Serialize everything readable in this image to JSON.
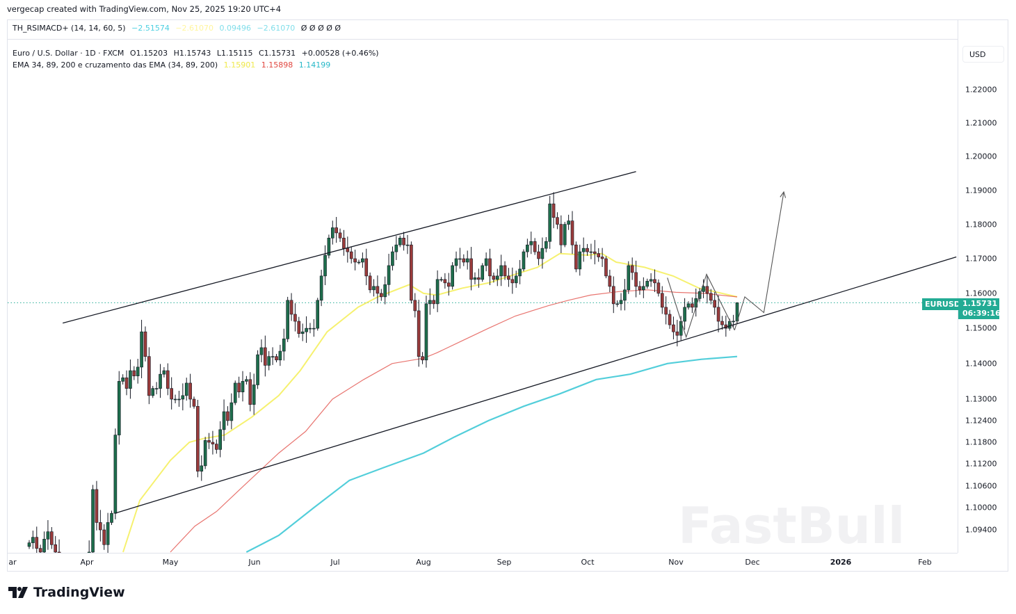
{
  "header": {
    "credit": "vergecap created with TradingView.com, Nov 25, 2025 19:20 UTC+4"
  },
  "indicator": {
    "name": "TH_RSIMACD+ (14, 14, 60, 5)",
    "values": [
      {
        "text": "−2.51574",
        "color": "#4dd0e1"
      },
      {
        "text": "−2.61070",
        "color": "#fff59d"
      },
      {
        "text": "0.09496",
        "color": "#80deea"
      },
      {
        "text": "−2.61070",
        "color": "#80deea"
      },
      {
        "text": "Ø Ø Ø Ø Ø",
        "color": "#131722"
      }
    ]
  },
  "legend": {
    "symbol": "Euro / U.S. Dollar · 1D · FXCM",
    "open": "O1.15203",
    "high": "H1.15743",
    "low": "L1.15115",
    "close": "C1.15731",
    "change": "+0.00528 (+0.46%)",
    "ema_name": "EMA 34, 89, 200 e cruzamento das EMA (34, 89, 200)",
    "ema_values": [
      {
        "text": "1.15901",
        "color": "#f5ef5f"
      },
      {
        "text": "1.15898",
        "color": "#e0463f"
      },
      {
        "text": "1.14199",
        "color": "#26b8c8"
      }
    ]
  },
  "price_axis": {
    "currency": "USD"
  },
  "price_label": {
    "symbol": "EURUSD",
    "price": "1.15731",
    "countdown": "06:39:16",
    "color": "#22ab94"
  },
  "watermark": "FastBull",
  "footer": {
    "brand": "TradingView"
  },
  "chart_data": {
    "type": "candlestick",
    "title": "",
    "y_scale": "log",
    "grid": false,
    "ylim": [
      1.086,
      1.232
    ],
    "y_ticks": [
      "1.22000",
      "1.21000",
      "1.20000",
      "1.19000",
      "1.18000",
      "1.17000",
      "1.16000",
      "1.15000",
      "1.14000",
      "1.13000",
      "1.12400",
      "1.11800",
      "1.11200",
      "1.10600",
      "1.10000",
      "1.09400"
    ],
    "x_ticks": [
      {
        "label": "ar",
        "date": "2025-03-01"
      },
      {
        "label": "Apr",
        "date": "2025-04-01"
      },
      {
        "label": "May",
        "date": "2025-05-01"
      },
      {
        "label": "Jun",
        "date": "2025-06-01"
      },
      {
        "label": "Jul",
        "date": "2025-07-01"
      },
      {
        "label": "Aug",
        "date": "2025-08-01"
      },
      {
        "label": "Sep",
        "date": "2025-09-01"
      },
      {
        "label": "Oct",
        "date": "2025-10-01"
      },
      {
        "label": "Nov",
        "date": "2025-11-01"
      },
      {
        "label": "Dec",
        "date": "2025-12-01"
      },
      {
        "label": "2026",
        "date": "2026-01-01",
        "bold": true
      },
      {
        "label": "Feb",
        "date": "2026-02-01"
      }
    ],
    "last_bar_date": "2025-11-25",
    "last_bar": {
      "open": 1.15203,
      "high": 1.15743,
      "low": 1.15115,
      "close": 1.15731
    },
    "closes": [
      1.0905,
      1.092,
      1.089,
      1.088,
      1.0915,
      1.0935,
      1.09,
      1.088,
      1.082,
      1.08,
      1.079,
      1.081,
      1.078,
      1.08,
      1.083,
      1.085,
      1.088,
      1.105,
      1.096,
      1.094,
      1.09,
      1.096,
      1.0985,
      1.12,
      1.135,
      1.136,
      1.133,
      1.138,
      1.1365,
      1.139,
      1.149,
      1.142,
      1.131,
      1.133,
      1.133,
      1.137,
      1.138,
      1.133,
      1.13,
      1.13,
      1.13,
      1.131,
      1.1345,
      1.13,
      1.128,
      1.11,
      1.1115,
      1.1185,
      1.118,
      1.1175,
      1.116,
      1.1215,
      1.1265,
      1.124,
      1.129,
      1.1345,
      1.132,
      1.135,
      1.1355,
      1.1285,
      1.134,
      1.1425,
      1.1445,
      1.1395,
      1.142,
      1.142,
      1.141,
      1.1435,
      1.147,
      1.158,
      1.154,
      1.152,
      1.1485,
      1.149,
      1.15,
      1.15,
      1.15,
      1.158,
      1.165,
      1.171,
      1.176,
      1.179,
      1.1775,
      1.176,
      1.173,
      1.172,
      1.17,
      1.169,
      1.169,
      1.17,
      1.165,
      1.161,
      1.162,
      1.16,
      1.159,
      1.1625,
      1.168,
      1.172,
      1.174,
      1.176,
      1.174,
      1.174,
      1.158,
      1.155,
      1.142,
      1.141,
      1.157,
      1.158,
      1.157,
      1.164,
      1.164,
      1.163,
      1.162,
      1.168,
      1.17,
      1.17,
      1.169,
      1.17,
      1.164,
      1.1645,
      1.164,
      1.168,
      1.17,
      1.165,
      1.164,
      1.165,
      1.168,
      1.165,
      1.164,
      1.163,
      1.165,
      1.167,
      1.172,
      1.174,
      1.175,
      1.172,
      1.17,
      1.173,
      1.175,
      1.186,
      1.182,
      1.18,
      1.174,
      1.18,
      1.181,
      1.174,
      1.167,
      1.172,
      1.173,
      1.172,
      1.172,
      1.1715,
      1.1705,
      1.17,
      1.165,
      1.162,
      1.157,
      1.157,
      1.158,
      1.161,
      1.168,
      1.166,
      1.162,
      1.161,
      1.162,
      1.1635,
      1.164,
      1.163,
      1.16,
      1.156,
      1.154,
      1.151,
      1.149,
      1.148,
      1.152,
      1.156,
      1.157,
      1.156,
      1.1585,
      1.1605,
      1.162,
      1.16,
      1.158,
      1.156,
      1.152,
      1.151,
      1.15,
      1.152,
      1.15203
    ],
    "series": [
      {
        "name": "EMA 34",
        "color": "#f5ef5f",
        "points": [
          [
            "2025-04-14",
            1.088
          ],
          [
            "2025-04-20",
            1.102
          ],
          [
            "2025-05-01",
            1.113
          ],
          [
            "2025-05-08",
            1.118
          ],
          [
            "2025-05-13",
            1.119
          ],
          [
            "2025-05-21",
            1.12
          ],
          [
            "2025-05-31",
            1.125
          ],
          [
            "2025-06-10",
            1.131
          ],
          [
            "2025-06-18",
            1.138
          ],
          [
            "2025-06-28",
            1.149
          ],
          [
            "2025-07-09",
            1.156
          ],
          [
            "2025-07-16",
            1.159
          ],
          [
            "2025-07-27",
            1.1625
          ],
          [
            "2025-08-01",
            1.16
          ],
          [
            "2025-08-06",
            1.1595
          ],
          [
            "2025-08-16",
            1.1615
          ],
          [
            "2025-08-26",
            1.163
          ],
          [
            "2025-09-05",
            1.1655
          ],
          [
            "2025-09-13",
            1.1675
          ],
          [
            "2025-09-21",
            1.1715
          ],
          [
            "2025-10-01",
            1.171
          ],
          [
            "2025-10-06",
            1.1715
          ],
          [
            "2025-10-11",
            1.169
          ],
          [
            "2025-10-21",
            1.1675
          ],
          [
            "2025-10-31",
            1.165
          ],
          [
            "2025-11-10",
            1.1615
          ],
          [
            "2025-11-25",
            1.15901
          ]
        ]
      },
      {
        "name": "EMA 89",
        "color": "#e0463f",
        "points": [
          [
            "2025-05-01",
            1.088
          ],
          [
            "2025-05-10",
            1.095
          ],
          [
            "2025-05-18",
            1.099
          ],
          [
            "2025-05-28",
            1.106
          ],
          [
            "2025-06-10",
            1.115
          ],
          [
            "2025-06-20",
            1.121
          ],
          [
            "2025-06-30",
            1.13
          ],
          [
            "2025-07-11",
            1.1355
          ],
          [
            "2025-07-21",
            1.14
          ],
          [
            "2025-08-01",
            1.1415
          ],
          [
            "2025-08-06",
            1.143
          ],
          [
            "2025-08-16",
            1.1465
          ],
          [
            "2025-08-26",
            1.15
          ],
          [
            "2025-09-05",
            1.1535
          ],
          [
            "2025-09-17",
            1.1565
          ],
          [
            "2025-09-24",
            1.158
          ],
          [
            "2025-10-02",
            1.1595
          ],
          [
            "2025-10-12",
            1.1605
          ],
          [
            "2025-10-22",
            1.161
          ],
          [
            "2025-11-01",
            1.1603
          ],
          [
            "2025-11-12",
            1.16
          ],
          [
            "2025-11-25",
            1.15898
          ]
        ]
      },
      {
        "name": "EMA 200",
        "color": "#3fc9d6",
        "points": [
          [
            "2025-05-29",
            1.088
          ],
          [
            "2025-06-10",
            1.0925
          ],
          [
            "2025-06-23",
            1.1
          ],
          [
            "2025-07-06",
            1.1075
          ],
          [
            "2025-07-18",
            1.111
          ],
          [
            "2025-08-01",
            1.115
          ],
          [
            "2025-08-13",
            1.1195
          ],
          [
            "2025-08-26",
            1.124
          ],
          [
            "2025-09-08",
            1.128
          ],
          [
            "2025-09-21",
            1.1315
          ],
          [
            "2025-10-04",
            1.1355
          ],
          [
            "2025-10-16",
            1.137
          ],
          [
            "2025-10-29",
            1.14
          ],
          [
            "2025-11-11",
            1.1412
          ],
          [
            "2025-11-25",
            1.14199
          ]
        ]
      }
    ],
    "drawings": [
      {
        "type": "trendline",
        "color": "#131722",
        "points": [
          [
            "2025-03-23",
            1.1515
          ],
          [
            "2025-10-18",
            1.1955
          ]
        ]
      },
      {
        "type": "trendline",
        "color": "#131722",
        "points": [
          [
            "2025-04-11",
            1.0985
          ],
          [
            "2026-02-12",
            1.1705
          ]
        ]
      },
      {
        "type": "path",
        "color": "#555555",
        "points": [
          [
            "2025-10-29",
            1.1645
          ],
          [
            "2025-11-05",
            1.1475
          ],
          [
            "2025-11-13",
            1.1655
          ],
          [
            "2025-11-24",
            1.1495
          ]
        ]
      },
      {
        "type": "arrow-path",
        "color": "#555555",
        "points": [
          [
            "2025-11-24",
            1.1495
          ],
          [
            "2025-11-28",
            1.159
          ],
          [
            "2025-12-05",
            1.1545
          ],
          [
            "2025-12-12",
            1.1895
          ]
        ]
      }
    ],
    "last_price_line": 1.15731
  }
}
